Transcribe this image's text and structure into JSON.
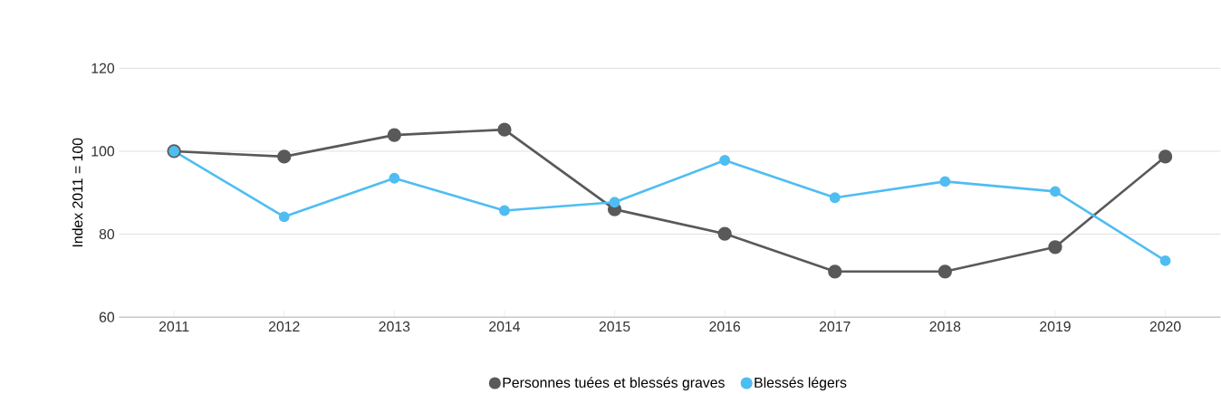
{
  "chart_data": {
    "type": "line",
    "ylabel": "Index 2011 = 100",
    "categories": [
      "2011",
      "2012",
      "2013",
      "2014",
      "2015",
      "2016",
      "2017",
      "2018",
      "2019",
      "2020"
    ],
    "series": [
      {
        "name": "Personnes tuées et blessés graves",
        "color": "#595959",
        "values": [
          100,
          98.7,
          103.9,
          105.2,
          86.0,
          80.1,
          71.0,
          71.0,
          76.9,
          98.7
        ]
      },
      {
        "name": "Blessés légers",
        "color": "#4fbdf2",
        "values": [
          100,
          84.2,
          93.5,
          85.7,
          87.7,
          97.8,
          88.8,
          92.7,
          90.3,
          73.6
        ]
      }
    ],
    "ylim": [
      60,
      120
    ],
    "yticks": [
      60,
      80,
      100,
      120
    ],
    "grid": "y",
    "legend": "bottom",
    "marker": "circle",
    "line_style": "solid"
  }
}
